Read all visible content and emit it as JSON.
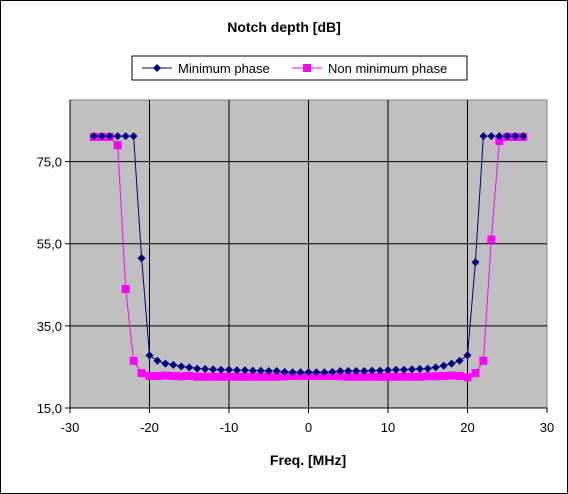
{
  "chart_data": {
    "type": "line",
    "title": "Notch depth [dB]",
    "xlabel": "Freq. [MHz]",
    "ylabel": "",
    "xlim": [
      -30,
      30
    ],
    "ylim": [
      15,
      90
    ],
    "xticks": [
      -30,
      -20,
      -10,
      0,
      10,
      20,
      30
    ],
    "yticks": [
      15,
      35,
      55,
      75
    ],
    "ytick_labels": [
      "15,0",
      "35,0",
      "55,0",
      "75,0"
    ],
    "grid": true,
    "legend_position": "top",
    "plot_background": "#c0c0c0",
    "series": [
      {
        "name": "Minimum phase",
        "color": "#000080",
        "marker": "diamond",
        "x": [
          -27,
          -26,
          -25,
          -24,
          -23,
          -22,
          -21,
          -20,
          -19,
          -18,
          -17,
          -16,
          -15,
          -14,
          -13,
          -12,
          -11,
          -10,
          -9,
          -8,
          -7,
          -6,
          -5,
          -4,
          -3,
          -2,
          -1,
          0,
          1,
          2,
          3,
          4,
          5,
          6,
          7,
          8,
          9,
          10,
          11,
          12,
          13,
          14,
          15,
          16,
          17,
          18,
          19,
          20,
          21,
          22,
          23,
          24,
          25,
          26,
          27
        ],
        "values": [
          81.2,
          81.2,
          81.2,
          81.2,
          81.2,
          81.2,
          51.5,
          27.8,
          26.5,
          25.8,
          25.5,
          25.1,
          24.9,
          24.6,
          24.5,
          24.4,
          24.3,
          24.3,
          24.2,
          24.2,
          24.1,
          24.1,
          24.0,
          24.0,
          23.8,
          23.7,
          23.7,
          23.7,
          23.7,
          23.7,
          23.8,
          24.0,
          24.0,
          24.0,
          24.0,
          24.1,
          24.1,
          24.2,
          24.3,
          24.3,
          24.4,
          24.5,
          24.6,
          24.9,
          25.3,
          25.8,
          26.5,
          27.8,
          50.5,
          81.2,
          81.2,
          81.2,
          81.2,
          81.2,
          81.2
        ]
      },
      {
        "name": "Non minimum phase",
        "color": "#ff00ff",
        "marker": "square",
        "x": [
          -27,
          -26,
          -25,
          -24,
          -23,
          -22,
          -21,
          -20,
          -19,
          -18,
          -17,
          -16,
          -15,
          -14,
          -13,
          -12,
          -11,
          -10,
          -9,
          -8,
          -7,
          -6,
          -5,
          -4,
          -3,
          -2,
          -1,
          0,
          1,
          2,
          3,
          4,
          5,
          6,
          7,
          8,
          9,
          10,
          11,
          12,
          13,
          14,
          15,
          16,
          17,
          18,
          19,
          20,
          21,
          22,
          23,
          24,
          25,
          26,
          27
        ],
        "values": [
          81.0,
          81.0,
          81.0,
          79.0,
          44.0,
          26.5,
          23.5,
          22.8,
          22.8,
          22.9,
          22.8,
          22.7,
          22.8,
          22.6,
          22.6,
          22.6,
          22.6,
          22.6,
          22.6,
          22.6,
          22.6,
          22.6,
          22.6,
          22.6,
          22.7,
          22.8,
          22.8,
          22.8,
          22.8,
          22.8,
          22.8,
          22.7,
          22.6,
          22.6,
          22.6,
          22.6,
          22.6,
          22.6,
          22.6,
          22.6,
          22.6,
          22.6,
          22.7,
          22.7,
          22.8,
          22.9,
          22.8,
          22.5,
          23.5,
          26.5,
          56.0,
          80.0,
          81.0,
          81.0,
          81.0
        ]
      }
    ]
  }
}
